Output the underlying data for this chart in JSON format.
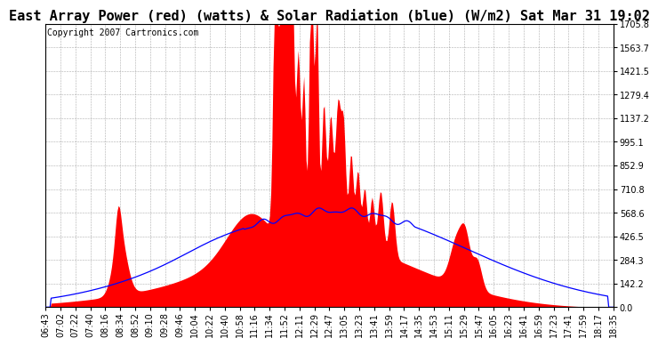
{
  "title": "East Array Power (red) (watts) & Solar Radiation (blue) (W/m2) Sat Mar 31 19:02",
  "copyright_text": "Copyright 2007 Cartronics.com",
  "background_color": "#ffffff",
  "plot_bg_color": "#ffffff",
  "grid_color": "#999999",
  "ytick_labels": [
    "0.0",
    "142.2",
    "284.3",
    "426.5",
    "568.6",
    "710.8",
    "852.9",
    "995.1",
    "1137.2",
    "1279.4",
    "1421.5",
    "1563.7",
    "1705.8"
  ],
  "ytick_values": [
    0.0,
    142.2,
    284.3,
    426.5,
    568.6,
    710.8,
    852.9,
    995.1,
    1137.2,
    1279.4,
    1421.5,
    1563.7,
    1705.8
  ],
  "ymax": 1705.8,
  "xtick_labels": [
    "06:43",
    "07:02",
    "07:22",
    "07:40",
    "08:16",
    "08:34",
    "08:52",
    "09:10",
    "09:28",
    "09:46",
    "10:04",
    "10:22",
    "10:40",
    "10:58",
    "11:16",
    "11:34",
    "11:52",
    "12:11",
    "12:29",
    "12:47",
    "13:05",
    "13:23",
    "13:41",
    "13:59",
    "14:17",
    "14:35",
    "14:53",
    "15:11",
    "15:29",
    "15:47",
    "16:05",
    "16:23",
    "16:41",
    "16:59",
    "17:23",
    "17:41",
    "17:59",
    "18:17",
    "18:35"
  ],
  "red_color": "#ff0000",
  "blue_color": "#0000ff",
  "title_fontsize": 11,
  "tick_fontsize": 7,
  "copyright_fontsize": 7,
  "n_points": 500
}
